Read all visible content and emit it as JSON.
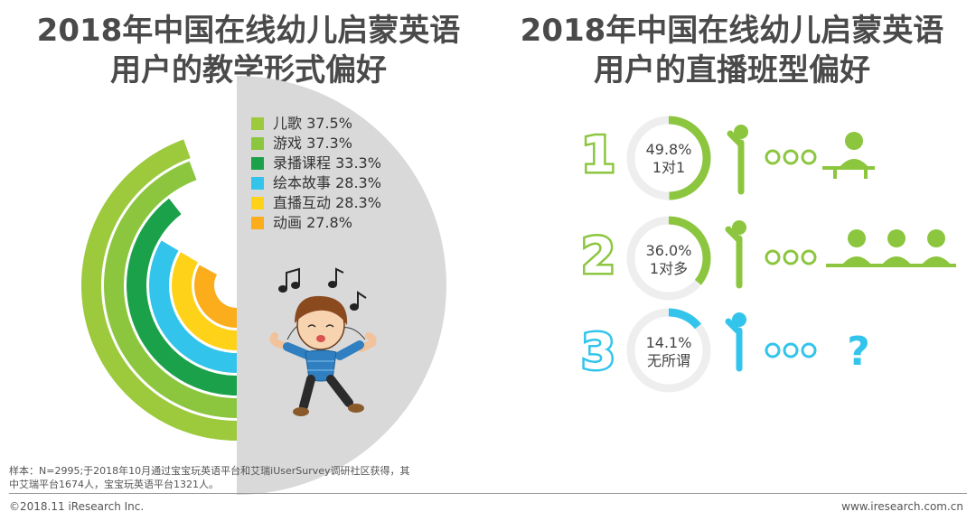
{
  "left_title": [
    "2018年中国在线幼儿启蒙英语",
    "用户的教学形式偏好"
  ],
  "right_title": [
    "2018年中国在线幼儿启蒙英语",
    "用户的直播班型偏好"
  ],
  "chart_data": [
    {
      "type": "radial_bar",
      "series": [
        {
          "label": "儿歌",
          "value": 37.5,
          "display": "儿歌 37.5%",
          "color": "#9dc93c"
        },
        {
          "label": "游戏",
          "value": 37.3,
          "display": "游戏 37.3%",
          "color": "#8cc63f"
        },
        {
          "label": "录播课程",
          "value": 33.3,
          "display": "录播课程 33.3%",
          "color": "#1aa14a"
        },
        {
          "label": "绘本故事",
          "value": 28.3,
          "display": "绘本故事 28.3%",
          "color": "#33c4ec"
        },
        {
          "label": "直播互动",
          "value": 28.3,
          "display": "直播互动 28.3%",
          "color": "#ffd21a"
        },
        {
          "label": "动画",
          "value": 27.8,
          "display": "动画 27.8%",
          "color": "#fbad1c"
        }
      ]
    },
    {
      "type": "donut_list",
      "items": [
        {
          "rank": "1",
          "value": 49.8,
          "value_label": "49.8%",
          "label": "1对1",
          "color": "#8cc63f"
        },
        {
          "rank": "2",
          "value": 36.0,
          "value_label": "36.0%",
          "label": "1对多",
          "color": "#8cc63f"
        },
        {
          "rank": "3",
          "value": 14.1,
          "value_label": "14.1%",
          "label": "无所谓",
          "color": "#33c4ec"
        }
      ]
    }
  ],
  "footer": {
    "note_line1": "样本：N=2995;于2018年10月通过宝宝玩英语平台和艾瑞iUserSurvey调研社区获得，其",
    "note_line2": "中艾瑞平台1674人，宝宝玩英语平台1321人。",
    "copyright": "©2018.11 iResearch Inc.",
    "website": "www.iresearch.com.cn"
  },
  "colors": {
    "grey_panel": "#d9d9d9",
    "track": "#eeeeee",
    "title": "#4a4a4a"
  }
}
